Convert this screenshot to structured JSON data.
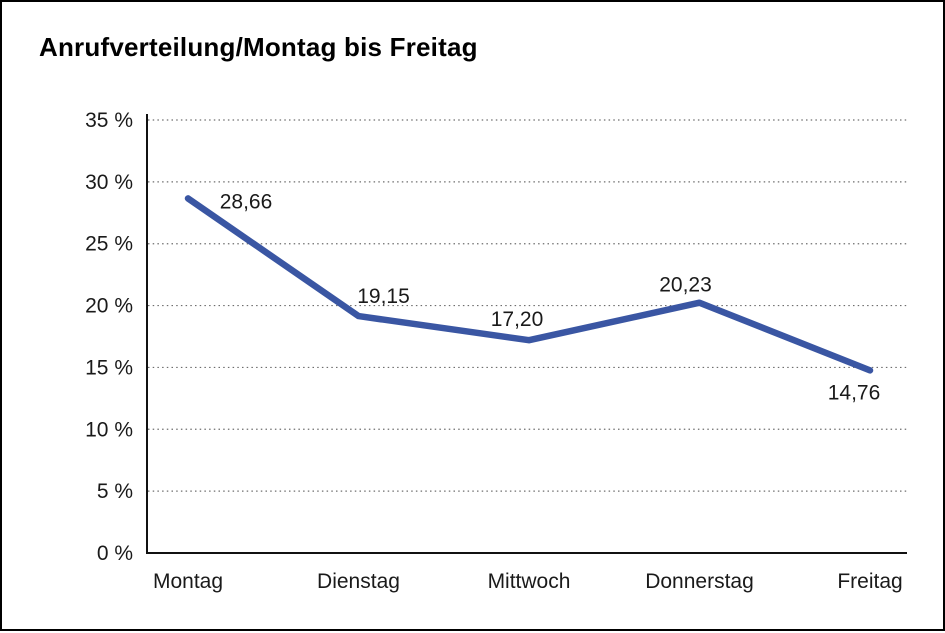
{
  "chart_data": {
    "type": "line",
    "title": "Anrufverteilung/Montag bis Freitag",
    "categories": [
      "Montag",
      "Dienstag",
      "Mittwoch",
      "Donnerstag",
      "Freitag"
    ],
    "values": [
      28.66,
      19.15,
      17.2,
      20.23,
      14.76
    ],
    "value_labels": [
      "28,66",
      "19,15",
      "17,20",
      "20,23",
      "14,76"
    ],
    "y_ticks": [
      0,
      5,
      10,
      15,
      20,
      25,
      30,
      35
    ],
    "y_tick_labels": [
      "0 %",
      "5 %",
      "10 %",
      "15 %",
      "20 %",
      "25 %",
      "30 %",
      "35 %"
    ],
    "ylim": [
      0,
      35
    ],
    "xlabel": "",
    "ylabel": "",
    "grid": "horizontal-dotted",
    "legend": "none",
    "line_color": "#3A56A3",
    "axis_color": "#111111",
    "gridline_color": "#6e6e6e",
    "text_color": "#1a1a1a"
  }
}
